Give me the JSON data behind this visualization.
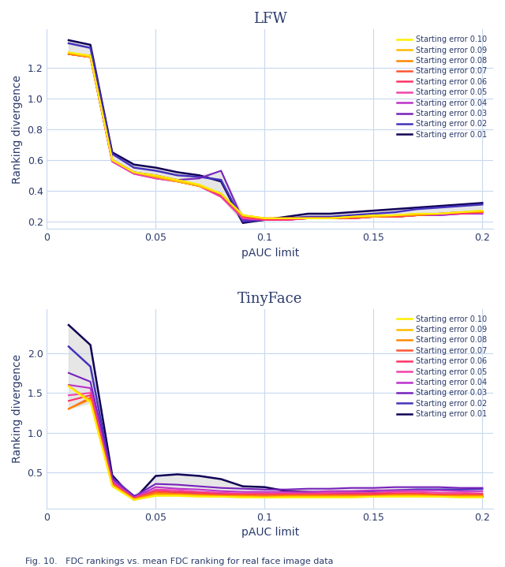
{
  "title_top": "LFW",
  "title_bottom": "TinyFace",
  "xlabel": "pAUC limit",
  "ylabel": "Ranking divergence",
  "caption": "Fig. 10.   FDC rankings vs. mean FDC ranking for real face image data",
  "x_values": [
    0.01,
    0.02,
    0.03,
    0.04,
    0.05,
    0.06,
    0.07,
    0.08,
    0.09,
    0.1,
    0.11,
    0.12,
    0.13,
    0.14,
    0.15,
    0.16,
    0.17,
    0.18,
    0.19,
    0.2
  ],
  "legend_labels": [
    "Starting error 0.10",
    "Starting error 0.09",
    "Starting error 0.08",
    "Starting error 0.07",
    "Starting error 0.06",
    "Starting error 0.05",
    "Starting error 0.04",
    "Starting error 0.03",
    "Starting error 0.02",
    "Starting error 0.01"
  ],
  "colors": [
    "#ffee00",
    "#ffbb00",
    "#ff8800",
    "#ff5533",
    "#ff3366",
    "#ee44aa",
    "#bb33cc",
    "#7722bb",
    "#4433bb",
    "#110055"
  ],
  "lfw_data": [
    [
      1.3,
      1.28,
      0.6,
      0.52,
      0.5,
      0.47,
      0.44,
      0.38,
      0.24,
      0.22,
      0.22,
      0.22,
      0.22,
      0.23,
      0.24,
      0.24,
      0.25,
      0.25,
      0.26,
      0.27
    ],
    [
      1.3,
      1.27,
      0.6,
      0.52,
      0.49,
      0.46,
      0.43,
      0.38,
      0.24,
      0.22,
      0.22,
      0.22,
      0.22,
      0.23,
      0.23,
      0.24,
      0.25,
      0.25,
      0.26,
      0.27
    ],
    [
      1.29,
      1.27,
      0.6,
      0.52,
      0.49,
      0.46,
      0.43,
      0.38,
      0.24,
      0.22,
      0.22,
      0.22,
      0.22,
      0.23,
      0.23,
      0.24,
      0.24,
      0.25,
      0.26,
      0.26
    ],
    [
      1.29,
      1.27,
      0.6,
      0.52,
      0.49,
      0.46,
      0.43,
      0.38,
      0.23,
      0.22,
      0.22,
      0.22,
      0.22,
      0.22,
      0.23,
      0.23,
      0.24,
      0.25,
      0.26,
      0.26
    ],
    [
      1.29,
      1.27,
      0.6,
      0.52,
      0.49,
      0.46,
      0.43,
      0.37,
      0.23,
      0.21,
      0.21,
      0.22,
      0.22,
      0.22,
      0.23,
      0.23,
      0.24,
      0.25,
      0.25,
      0.26
    ],
    [
      1.29,
      1.27,
      0.59,
      0.51,
      0.48,
      0.46,
      0.43,
      0.36,
      0.22,
      0.21,
      0.21,
      0.22,
      0.22,
      0.22,
      0.23,
      0.23,
      0.24,
      0.25,
      0.25,
      0.26
    ],
    [
      1.29,
      1.27,
      0.59,
      0.51,
      0.48,
      0.46,
      0.43,
      0.36,
      0.22,
      0.21,
      0.21,
      0.22,
      0.22,
      0.22,
      0.23,
      0.23,
      0.24,
      0.24,
      0.25,
      0.25
    ],
    [
      1.29,
      1.28,
      0.6,
      0.52,
      0.5,
      0.47,
      0.48,
      0.53,
      0.21,
      0.21,
      0.21,
      0.22,
      0.22,
      0.22,
      0.23,
      0.23,
      0.24,
      0.24,
      0.25,
      0.25
    ],
    [
      1.36,
      1.33,
      0.64,
      0.55,
      0.53,
      0.5,
      0.49,
      0.47,
      0.2,
      0.21,
      0.22,
      0.23,
      0.23,
      0.24,
      0.25,
      0.26,
      0.28,
      0.29,
      0.3,
      0.31
    ],
    [
      1.38,
      1.35,
      0.65,
      0.57,
      0.55,
      0.52,
      0.5,
      0.46,
      0.19,
      0.21,
      0.23,
      0.25,
      0.25,
      0.26,
      0.27,
      0.28,
      0.29,
      0.3,
      0.31,
      0.32
    ]
  ],
  "tinyface_data": [
    [
      1.58,
      1.38,
      0.33,
      0.16,
      0.21,
      0.21,
      0.2,
      0.2,
      0.19,
      0.19,
      0.19,
      0.19,
      0.19,
      0.19,
      0.2,
      0.2,
      0.2,
      0.2,
      0.19,
      0.19
    ],
    [
      1.59,
      1.4,
      0.34,
      0.16,
      0.22,
      0.22,
      0.21,
      0.2,
      0.2,
      0.19,
      0.2,
      0.2,
      0.2,
      0.2,
      0.2,
      0.21,
      0.21,
      0.2,
      0.2,
      0.2
    ],
    [
      1.3,
      1.42,
      0.35,
      0.17,
      0.24,
      0.23,
      0.22,
      0.21,
      0.21,
      0.2,
      0.21,
      0.21,
      0.21,
      0.21,
      0.21,
      0.22,
      0.22,
      0.21,
      0.21,
      0.21
    ],
    [
      1.3,
      1.44,
      0.36,
      0.17,
      0.26,
      0.24,
      0.23,
      0.22,
      0.22,
      0.22,
      0.22,
      0.22,
      0.22,
      0.22,
      0.22,
      0.23,
      0.23,
      0.22,
      0.22,
      0.22
    ],
    [
      1.4,
      1.47,
      0.37,
      0.18,
      0.27,
      0.26,
      0.25,
      0.23,
      0.23,
      0.23,
      0.23,
      0.23,
      0.23,
      0.23,
      0.24,
      0.24,
      0.24,
      0.23,
      0.23,
      0.23
    ],
    [
      1.47,
      1.5,
      0.38,
      0.18,
      0.29,
      0.28,
      0.26,
      0.25,
      0.24,
      0.24,
      0.24,
      0.24,
      0.25,
      0.25,
      0.25,
      0.26,
      0.26,
      0.25,
      0.25,
      0.24
    ],
    [
      1.6,
      1.56,
      0.4,
      0.19,
      0.32,
      0.3,
      0.29,
      0.27,
      0.26,
      0.26,
      0.26,
      0.26,
      0.27,
      0.27,
      0.28,
      0.28,
      0.28,
      0.28,
      0.27,
      0.27
    ],
    [
      1.75,
      1.64,
      0.44,
      0.2,
      0.36,
      0.35,
      0.33,
      0.31,
      0.3,
      0.29,
      0.29,
      0.3,
      0.3,
      0.31,
      0.31,
      0.32,
      0.32,
      0.32,
      0.31,
      0.31
    ],
    [
      2.08,
      1.83,
      0.43,
      0.21,
      0.27,
      0.25,
      0.24,
      0.24,
      0.23,
      0.23,
      0.24,
      0.24,
      0.25,
      0.26,
      0.27,
      0.28,
      0.29,
      0.29,
      0.29,
      0.3
    ],
    [
      2.35,
      2.1,
      0.47,
      0.16,
      0.46,
      0.48,
      0.46,
      0.42,
      0.33,
      0.32,
      0.27,
      0.26,
      0.25,
      0.24,
      0.23,
      0.22,
      0.22,
      0.21,
      0.21,
      0.2
    ]
  ],
  "background_color": "#ffffff",
  "grid_color": "#c8d8f0",
  "text_color": "#2a3a6a",
  "line_width": 1.5,
  "figsize": [
    6.4,
    7.19
  ],
  "lfw_ylim": [
    0.15,
    1.45
  ],
  "lfw_yticks": [
    0.2,
    0.4,
    0.6,
    0.8,
    1.0,
    1.2
  ],
  "tinyface_ylim": [
    0.05,
    2.55
  ],
  "tinyface_yticks": [
    0.5,
    1.0,
    1.5,
    2.0
  ],
  "xlim": [
    0,
    0.205
  ],
  "xticks": [
    0,
    0.05,
    0.1,
    0.15,
    0.2
  ]
}
